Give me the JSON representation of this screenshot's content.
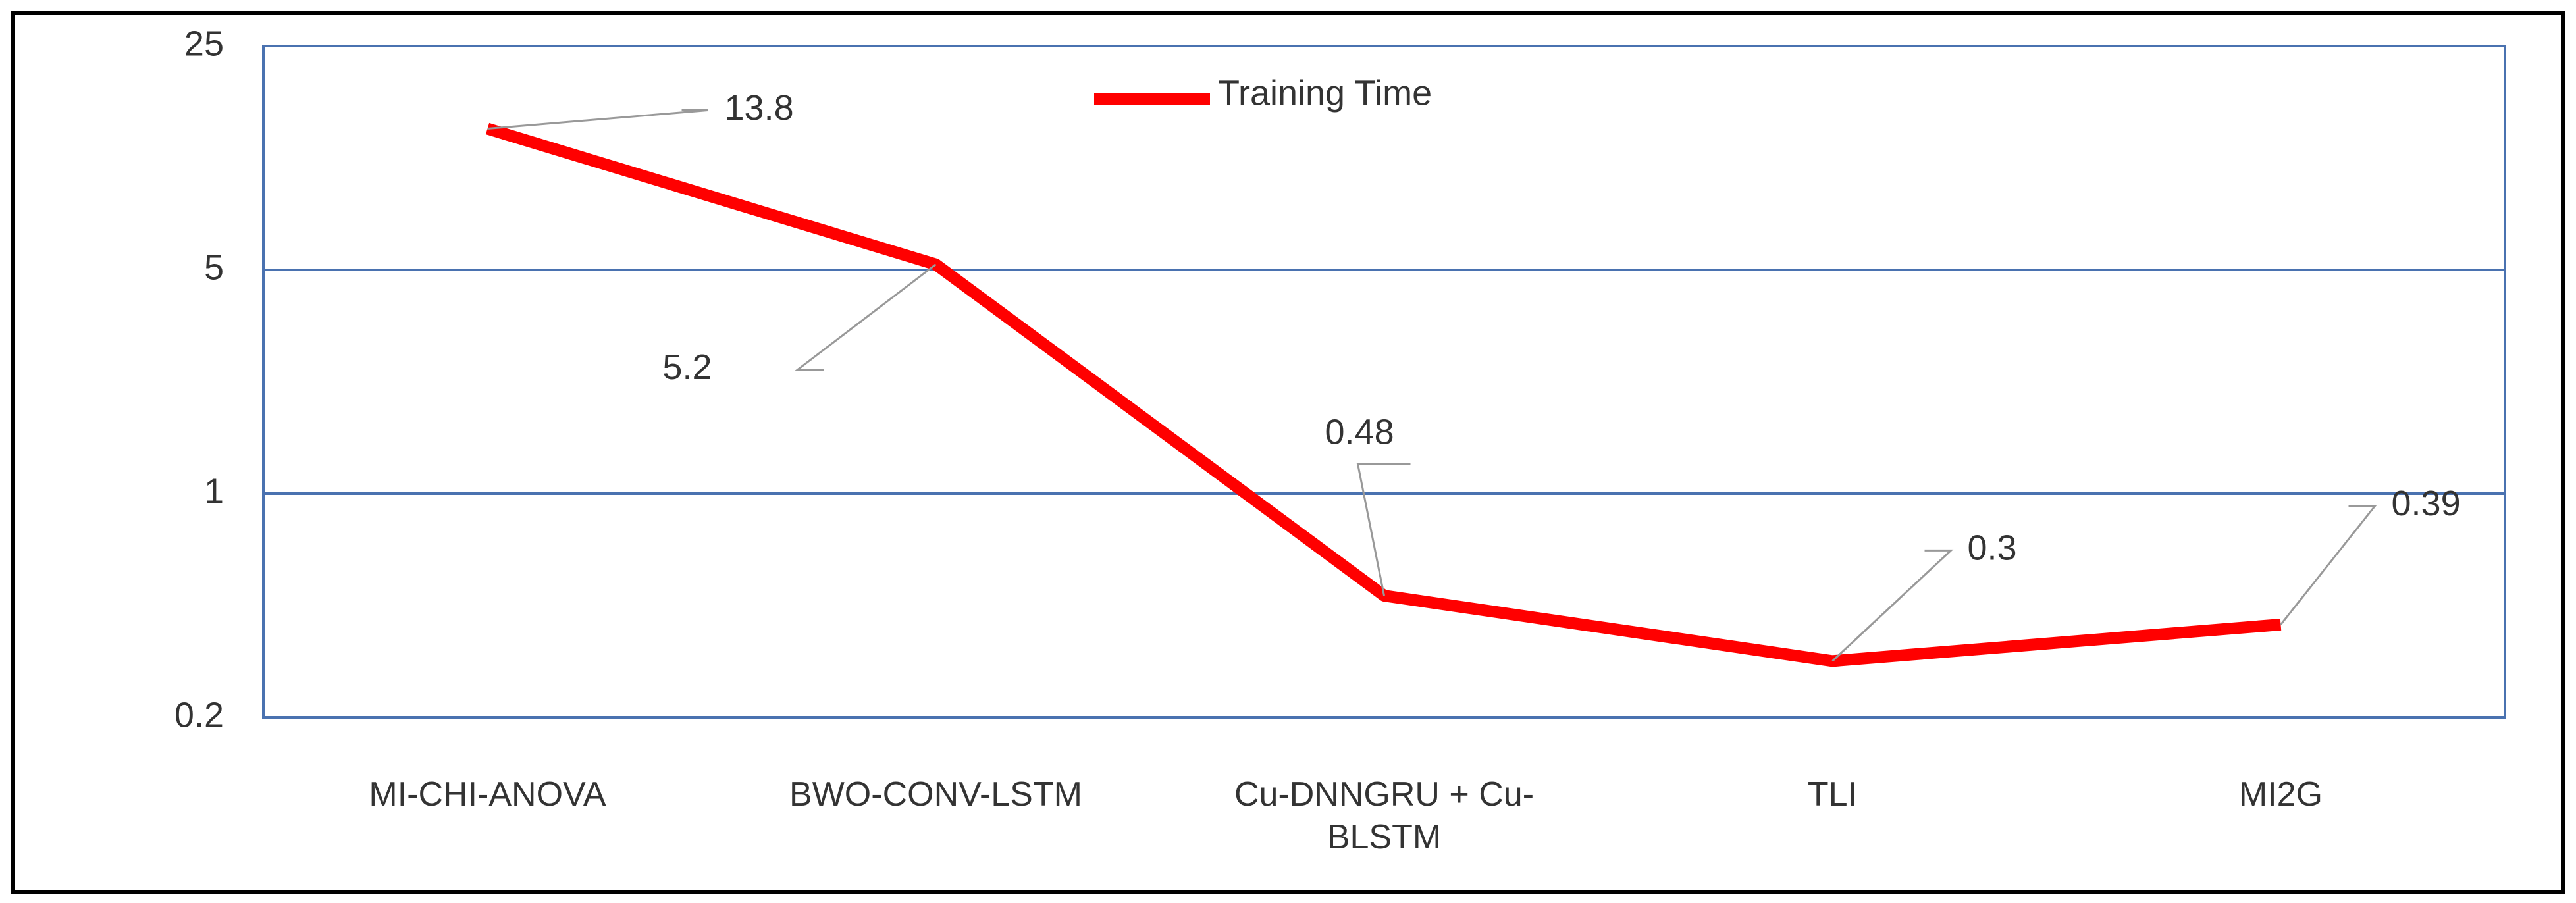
{
  "chart_data": {
    "type": "line",
    "categories": [
      "MI-CHI-ANOVA",
      "BWO-CONV-LSTM",
      "Cu-DNNGRU + Cu-BLSTM",
      "TLI",
      "MI2G"
    ],
    "series": [
      {
        "name": "Training Time",
        "color": "#ff0000",
        "values": [
          13.8,
          5.2,
          0.48,
          0.3,
          0.39
        ]
      }
    ],
    "ylim": [
      0.2,
      25
    ],
    "yticks": [
      0.2,
      1,
      5,
      25
    ],
    "log_scale": true,
    "grid": true,
    "legend": "top"
  }
}
